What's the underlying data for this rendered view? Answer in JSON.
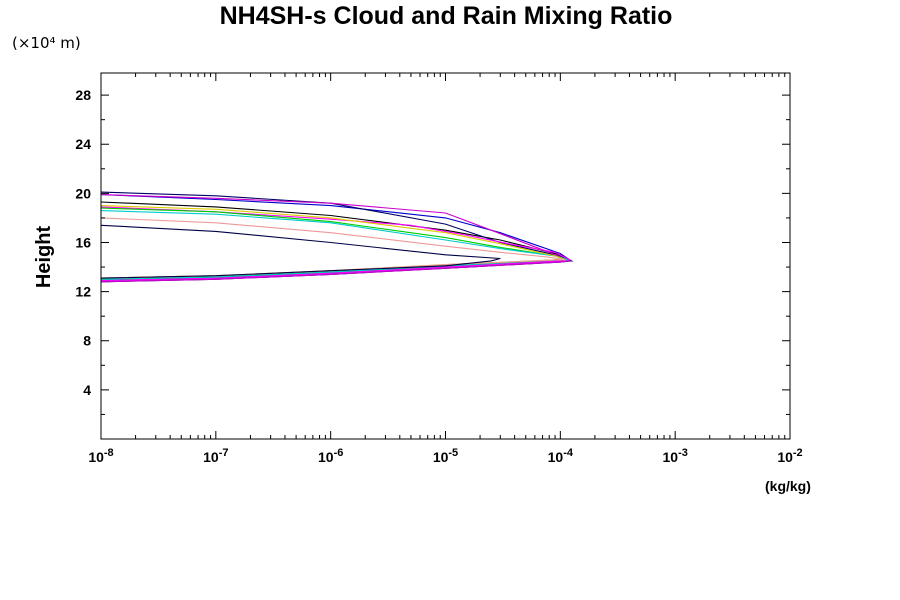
{
  "chart_data": {
    "type": "line",
    "title": "NH4SH-s Cloud and Rain Mixing Ratio",
    "ylabel": "Height",
    "y_unit": "(×10⁴ m)",
    "xlabel": "",
    "x_unit": "(kg/kg)",
    "x_scale": "log",
    "xlim": [
      1e-08,
      0.01
    ],
    "ylim": [
      0,
      29.8
    ],
    "x_ticks": [
      {
        "mant": "10",
        "exp": "-8"
      },
      {
        "mant": "10",
        "exp": "-7"
      },
      {
        "mant": "10",
        "exp": "-6"
      },
      {
        "mant": "10",
        "exp": "-5"
      },
      {
        "mant": "10",
        "exp": "-4"
      },
      {
        "mant": "10",
        "exp": "-3"
      },
      {
        "mant": "10",
        "exp": "-2"
      }
    ],
    "y_ticks": [
      "4",
      "8",
      "12",
      "16",
      "20",
      "24",
      "28"
    ],
    "grid": false,
    "series": [
      {
        "color": "#000000",
        "points": [
          [
            1e-08,
            13.0
          ],
          [
            1e-07,
            13.2
          ],
          [
            1e-06,
            13.6
          ],
          [
            1e-05,
            14.1
          ],
          [
            0.0001,
            14.6
          ],
          [
            0.00012,
            14.6
          ],
          [
            0.0001,
            15.0
          ],
          [
            3e-05,
            16.2
          ],
          [
            1e-05,
            17.0
          ],
          [
            1e-06,
            18.2
          ],
          [
            1e-07,
            18.9
          ],
          [
            1e-08,
            19.3
          ]
        ]
      },
      {
        "color": "#0000cc",
        "points": [
          [
            1e-08,
            12.9
          ],
          [
            1e-07,
            13.1
          ],
          [
            1e-06,
            13.5
          ],
          [
            1e-05,
            14.0
          ],
          [
            0.0001,
            14.5
          ],
          [
            0.00012,
            14.6
          ],
          [
            0.0001,
            15.1
          ],
          [
            3e-05,
            16.8
          ],
          [
            1e-05,
            18.0
          ],
          [
            1e-06,
            19.0
          ],
          [
            1e-07,
            19.5
          ],
          [
            1e-08,
            19.9
          ]
        ]
      },
      {
        "color": "#000066",
        "points": [
          [
            1e-08,
            12.8
          ],
          [
            1e-07,
            13.0
          ],
          [
            1e-06,
            13.4
          ],
          [
            1e-05,
            13.9
          ],
          [
            0.0001,
            14.4
          ],
          [
            0.000125,
            14.5
          ],
          [
            0.0001,
            14.9
          ],
          [
            3e-05,
            16.0
          ],
          [
            1e-05,
            17.5
          ],
          [
            1e-06,
            19.2
          ],
          [
            1e-07,
            19.8
          ],
          [
            1e-08,
            20.1
          ]
        ]
      },
      {
        "color": "#cc00cc",
        "points": [
          [
            1e-08,
            12.8
          ],
          [
            1e-07,
            13.0
          ],
          [
            1e-06,
            13.4
          ],
          [
            1e-05,
            13.9
          ],
          [
            0.0001,
            14.4
          ],
          [
            0.00012,
            14.5
          ],
          [
            8e-05,
            15.2
          ],
          [
            2.5e-05,
            17.0
          ],
          [
            1e-05,
            18.4
          ],
          [
            1e-06,
            19.2
          ],
          [
            1e-07,
            19.6
          ],
          [
            1e-08,
            19.9
          ]
        ]
      },
      {
        "color": "#ff00ff",
        "points": [
          [
            1e-08,
            12.9
          ],
          [
            1e-07,
            13.1
          ],
          [
            1e-06,
            13.5
          ],
          [
            1e-05,
            14.0
          ],
          [
            0.0001,
            14.5
          ],
          [
            0.00012,
            14.6
          ],
          [
            9e-05,
            15.2
          ],
          [
            4e-05,
            15.8
          ],
          [
            1.5e-05,
            16.6
          ],
          [
            5e-06,
            17.4
          ],
          [
            1e-06,
            17.9
          ],
          [
            1e-07,
            18.5
          ],
          [
            1e-08,
            18.9
          ]
        ]
      },
      {
        "color": "#00cc00",
        "points": [
          [
            1e-08,
            13.0
          ],
          [
            1e-07,
            13.2
          ],
          [
            1e-06,
            13.6
          ],
          [
            1e-05,
            14.1
          ],
          [
            0.0001,
            14.6
          ],
          [
            0.000115,
            14.6
          ],
          [
            9e-05,
            14.9
          ],
          [
            3e-05,
            15.6
          ],
          [
            1e-05,
            16.4
          ],
          [
            1e-06,
            17.7
          ],
          [
            1e-07,
            18.5
          ],
          [
            1e-08,
            18.8
          ]
        ]
      },
      {
        "color": "#00cccc",
        "points": [
          [
            1e-08,
            13.0
          ],
          [
            1e-07,
            13.2
          ],
          [
            1e-06,
            13.6
          ],
          [
            1e-05,
            14.1
          ],
          [
            0.0001,
            14.6
          ],
          [
            0.000115,
            14.6
          ],
          [
            9e-05,
            14.9
          ],
          [
            3e-05,
            15.5
          ],
          [
            1e-05,
            16.2
          ],
          [
            1e-06,
            17.6
          ],
          [
            1e-07,
            18.3
          ],
          [
            1e-08,
            18.6
          ]
        ]
      },
      {
        "color": "#ddcc00",
        "points": [
          [
            1e-08,
            13.1
          ],
          [
            1e-07,
            13.3
          ],
          [
            1e-06,
            13.7
          ],
          [
            1e-05,
            14.2
          ],
          [
            0.0001,
            14.6
          ],
          [
            0.00011,
            14.6
          ],
          [
            9e-05,
            14.9
          ],
          [
            3e-05,
            15.9
          ],
          [
            1e-05,
            16.8
          ],
          [
            1e-06,
            18.0
          ],
          [
            1e-07,
            18.7
          ],
          [
            1e-08,
            19.0
          ]
        ]
      },
      {
        "color": "#ee9999",
        "points": [
          [
            1e-08,
            13.1
          ],
          [
            1e-07,
            13.3
          ],
          [
            1e-06,
            13.7
          ],
          [
            1e-05,
            14.2
          ],
          [
            0.0001,
            14.6
          ],
          [
            0.00011,
            14.6
          ],
          [
            8e-05,
            14.8
          ],
          [
            3e-05,
            15.2
          ],
          [
            1e-05,
            15.7
          ],
          [
            1e-06,
            16.8
          ],
          [
            1e-07,
            17.6
          ],
          [
            1e-08,
            18.0
          ]
        ]
      },
      {
        "color": "#000044",
        "points": [
          [
            1e-08,
            13.1
          ],
          [
            1e-07,
            13.3
          ],
          [
            1e-06,
            13.7
          ],
          [
            1e-05,
            14.1
          ],
          [
            2.5e-05,
            14.5
          ],
          [
            3e-05,
            14.7
          ],
          [
            1e-05,
            15.0
          ],
          [
            1e-06,
            16.0
          ],
          [
            1e-07,
            16.9
          ],
          [
            1e-08,
            17.4
          ]
        ]
      }
    ]
  }
}
